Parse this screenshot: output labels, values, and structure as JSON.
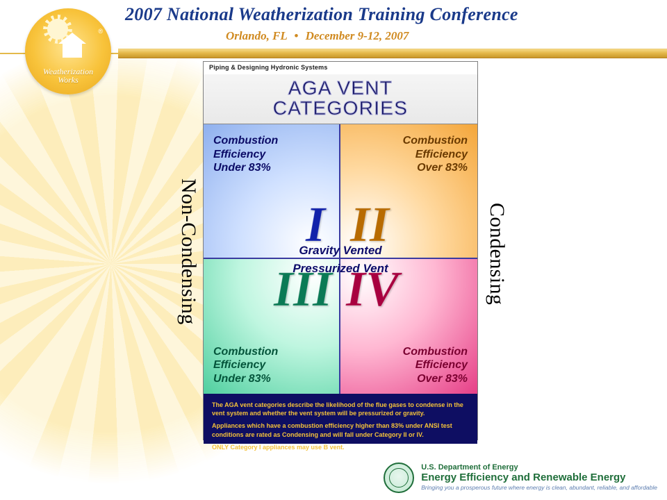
{
  "header": {
    "title": "2007 National Weatherization Training Conference",
    "location": "Orlando, FL",
    "dates": "December 9-12, 2007",
    "title_color": "#1a3a8a",
    "sub_color": "#d08a20",
    "rule_gradient": [
      "#f5d884",
      "#e4b94a",
      "#c9972b"
    ]
  },
  "logo": {
    "line1": "Weatherization",
    "line2": "Works",
    "badge_gradient": [
      "#ffe490",
      "#f8c33b",
      "#e7a61d"
    ]
  },
  "side_labels": {
    "left": "Non-Condensing",
    "right": "Condensing",
    "font_size_pt": 22
  },
  "chart": {
    "header_small": "Piping & Designing Hydronic Systems",
    "title_line1": "AGA VENT",
    "title_line2": "CATEGORIES",
    "title_color": "#0a0a5a",
    "mid_top": "Gravity Vented",
    "mid_bottom": "Pressurized Vent",
    "cells": {
      "i": {
        "numeral": "I",
        "text_l1": "Combustion",
        "text_l2": "Efficiency",
        "text_l3": "Under 83%",
        "bg_inner": "#ffffff",
        "bg_outer": "#8fb0ee",
        "text_color": "#0b0b66",
        "num_color": "#1122aa"
      },
      "ii": {
        "numeral": "II",
        "text_l1": "Combustion",
        "text_l2": "Efficiency",
        "text_l3": "Over 83%",
        "bg_inner": "#ffffff",
        "bg_outer": "#f4a63a",
        "text_color": "#6a3a00",
        "num_color": "#b86b00"
      },
      "iii": {
        "numeral": "III",
        "text_l1": "Combustion",
        "text_l2": "Efficiency",
        "text_l3": "Under 83%",
        "bg_inner": "#ffffff",
        "bg_outer": "#4fcf9f",
        "text_color": "#04553b",
        "num_color": "#0a7a55"
      },
      "iv": {
        "numeral": "IV",
        "text_l1": "Combustion",
        "text_l2": "Efficiency",
        "text_l3": "Over 83%",
        "bg_inner": "#ffffff",
        "bg_outer": "#e63f87",
        "text_color": "#7a0030",
        "num_color": "#a8003f"
      }
    },
    "footer": {
      "bg": "#0e0e62",
      "color": "#f4c23a",
      "p1": "The AGA vent categories describe the likelihood of the flue gases to condense in the vent system and whether the vent system will be pressurized or gravity.",
      "p2": "Appliances which have a combustion efficiency higher than 83% under ANSI test conditions are rated as Condensing and will fall under Category II or IV.",
      "p3": "ONLY Category I appliances may use B vent."
    }
  },
  "doe": {
    "line1": "U.S. Department of Energy",
    "line2": "Energy Efficiency and Renewable Energy",
    "line3": "Bringing you a prosperous future where energy is clean, abundant, reliable, and affordable",
    "text_color": "#1f6e3a",
    "tagline_color": "#5c7db0"
  }
}
